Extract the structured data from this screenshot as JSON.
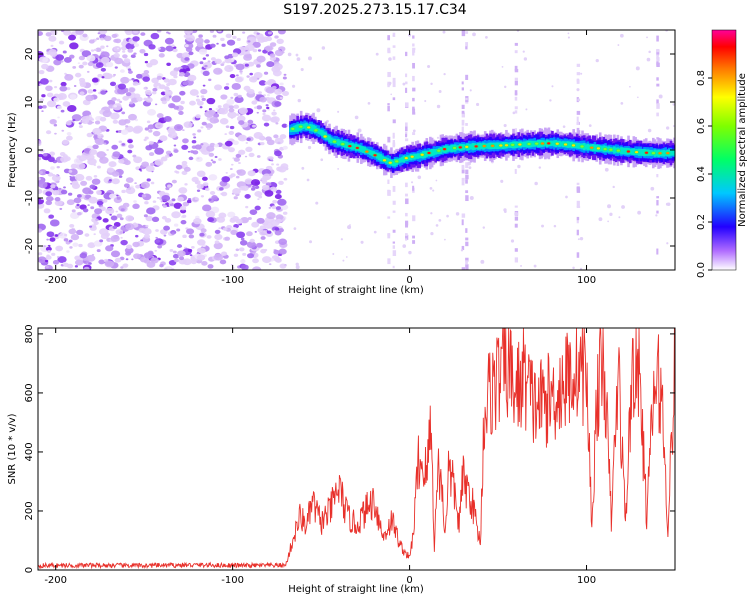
{
  "title": "S197.2025.273.15.17.C34",
  "chart_data": [
    {
      "type": "heatmap",
      "name": "spectrogram",
      "xlabel": "Height of straight line (km)",
      "ylabel": "Frequency (Hz)",
      "xlim": [
        -210,
        150
      ],
      "ylim": [
        -25,
        25
      ],
      "xticks": [
        -200,
        -100,
        0,
        100
      ],
      "yticks": [
        -20,
        -10,
        0,
        10,
        20
      ],
      "noise_region_x": [
        -210,
        -70
      ],
      "ridge": {
        "x": [
          -68,
          -60,
          -55,
          -50,
          -45,
          -40,
          -35,
          -30,
          -25,
          -20,
          -15,
          -10,
          -5,
          0,
          5,
          10,
          15,
          20,
          30,
          40,
          50,
          60,
          70,
          80,
          90,
          100,
          110,
          120,
          130,
          140,
          150
        ],
        "y": [
          4.2,
          5.0,
          4.5,
          3.5,
          2.0,
          1.5,
          0.9,
          0.5,
          -0.2,
          -1.0,
          -2.0,
          -2.8,
          -2.0,
          -1.5,
          -1.2,
          -0.7,
          -0.3,
          0.2,
          0.6,
          0.8,
          0.9,
          1.1,
          1.3,
          1.4,
          1.1,
          0.6,
          0.2,
          -0.2,
          -0.5,
          -0.7,
          -0.6
        ]
      },
      "colorbar": {
        "label": "Normalized spectral amplitude",
        "range": [
          0.0,
          1.0
        ],
        "ticks": [
          "0.0",
          "0.2",
          "0.4",
          "0.6",
          "0.8"
        ]
      }
    },
    {
      "type": "line",
      "name": "snr",
      "xlabel": "Height of straight line (km)",
      "ylabel": "SNR (10 * v/v)",
      "xlim": [
        -210,
        150
      ],
      "ylim": [
        0,
        820
      ],
      "xticks": [
        -200,
        -100,
        0,
        100
      ],
      "yticks": [
        0,
        200,
        400,
        600,
        800
      ],
      "color": "#e8302a",
      "x": [
        -210,
        -180,
        -150,
        -120,
        -90,
        -70,
        -65,
        -62,
        -58,
        -55,
        -50,
        -45,
        -40,
        -35,
        -30,
        -25,
        -20,
        -15,
        -10,
        -5,
        0,
        2,
        5,
        10,
        12,
        14,
        16,
        18,
        20,
        22,
        25,
        28,
        30,
        35,
        40,
        42,
        45,
        50,
        55,
        60,
        65,
        70,
        80,
        90,
        95,
        100,
        103,
        106,
        110,
        114,
        118,
        122,
        126,
        130,
        134,
        138,
        142,
        146,
        150
      ],
      "y": [
        15,
        16,
        15,
        17,
        15,
        16,
        120,
        180,
        150,
        230,
        160,
        200,
        280,
        180,
        150,
        200,
        240,
        110,
        170,
        80,
        40,
        120,
        370,
        330,
        520,
        80,
        350,
        300,
        120,
        340,
        280,
        150,
        310,
        240,
        90,
        520,
        600,
        650,
        700,
        600,
        660,
        560,
        580,
        650,
        700,
        660,
        150,
        600,
        700,
        170,
        680,
        160,
        700,
        650,
        180,
        600,
        640,
        150,
        700
      ]
    }
  ]
}
